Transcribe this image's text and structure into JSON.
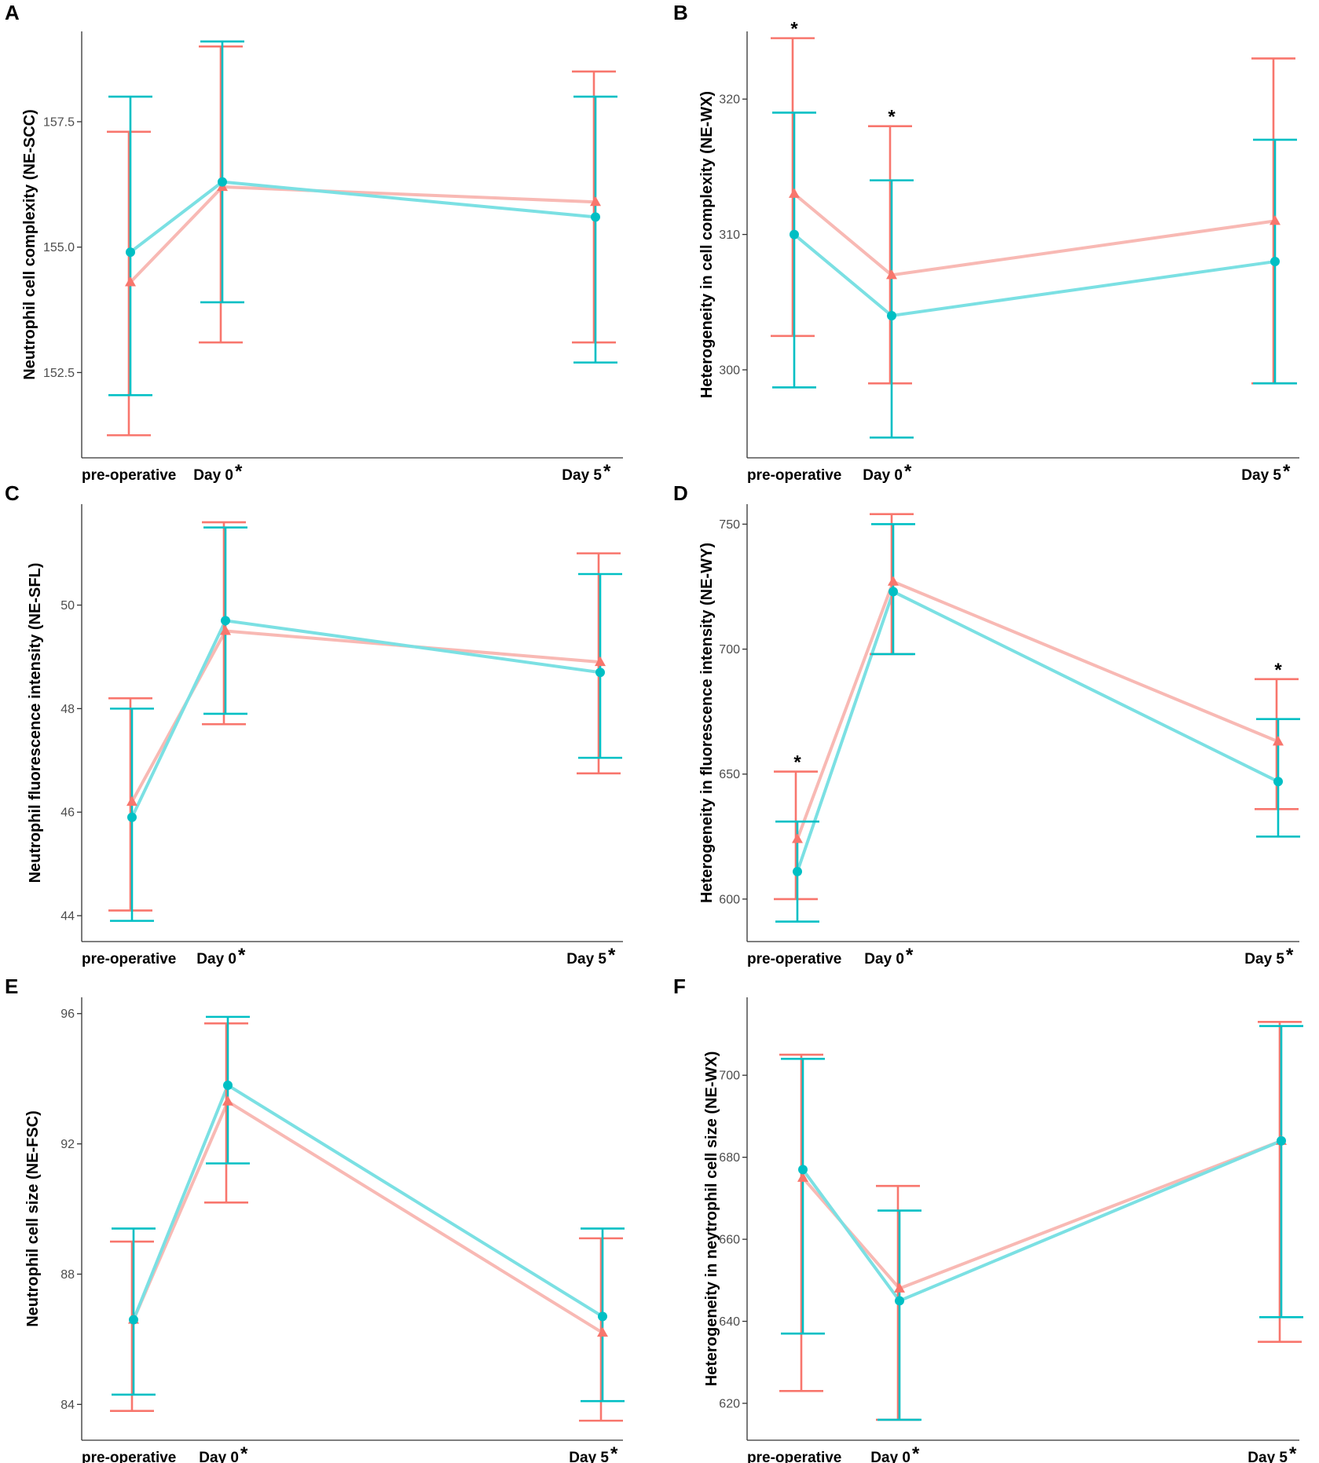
{
  "colors": {
    "series1": "#F8766D",
    "series2": "#00BFC4",
    "series1_line": "#F8B9B4",
    "series2_line": "#7BE0E3"
  },
  "chart_data": [
    {
      "panel": "A",
      "type": "line",
      "ylabel": "Neutrophil cell complexity (NE-SCC)",
      "categories": [
        "pre-operative",
        "Day 0",
        "Day 5"
      ],
      "category_stars": [
        false,
        true,
        true
      ],
      "x": [
        0,
        1,
        5
      ],
      "yticks": [
        "152.5",
        "155.0",
        "157.5"
      ],
      "yticks_num": [
        152.5,
        155.0,
        157.5
      ],
      "ylim": [
        150.8,
        159.3
      ],
      "series": [
        {
          "name": "series1",
          "marker": "triangle",
          "values": [
            154.3,
            156.2,
            155.9
          ],
          "lower": [
            151.25,
            153.1,
            153.1
          ],
          "upper": [
            157.3,
            159.0,
            158.5
          ],
          "stars": [
            false,
            false,
            false
          ]
        },
        {
          "name": "series2",
          "marker": "circle",
          "values": [
            154.9,
            156.3,
            155.6
          ],
          "lower": [
            152.05,
            153.9,
            152.7
          ],
          "upper": [
            158.0,
            159.1,
            158.0
          ],
          "stars": [
            false,
            false,
            false
          ]
        }
      ]
    },
    {
      "panel": "B",
      "type": "line",
      "ylabel": "Heterogeneity in cell complexity (NE-WX)",
      "categories": [
        "pre-operative",
        "Day 0",
        "Day 5"
      ],
      "category_stars": [
        false,
        true,
        true
      ],
      "x": [
        0,
        1,
        5
      ],
      "yticks": [
        "300",
        "310",
        "320"
      ],
      "yticks_num": [
        300,
        310,
        320
      ],
      "ylim": [
        293.5,
        325
      ],
      "series": [
        {
          "name": "series1",
          "marker": "triangle",
          "values": [
            313,
            307,
            311
          ],
          "lower": [
            302.5,
            299,
            299
          ],
          "upper": [
            324.5,
            318,
            323
          ],
          "stars": [
            true,
            true,
            false
          ]
        },
        {
          "name": "series2",
          "marker": "circle",
          "values": [
            310,
            304,
            308
          ],
          "lower": [
            298.7,
            295,
            299
          ],
          "upper": [
            319,
            314,
            317
          ],
          "stars": [
            false,
            false,
            false
          ]
        }
      ]
    },
    {
      "panel": "C",
      "type": "line",
      "ylabel": "Neutrophil fluorescence intensity (NE-SFL)",
      "categories": [
        "pre-operative",
        "Day 0",
        "Day 5"
      ],
      "category_stars": [
        false,
        true,
        true
      ],
      "x": [
        0,
        1,
        5
      ],
      "yticks": [
        "44",
        "46",
        "48",
        "50"
      ],
      "yticks_num": [
        44,
        46,
        48,
        50
      ],
      "ylim": [
        43.5,
        51.95
      ],
      "series": [
        {
          "name": "series1",
          "marker": "triangle",
          "values": [
            46.2,
            49.5,
            48.9
          ],
          "lower": [
            44.1,
            47.7,
            46.75
          ],
          "upper": [
            48.2,
            51.6,
            51.0
          ],
          "stars": [
            false,
            false,
            false
          ]
        },
        {
          "name": "series2",
          "marker": "circle",
          "values": [
            45.9,
            49.7,
            48.7
          ],
          "lower": [
            43.9,
            47.9,
            47.05
          ],
          "upper": [
            48.0,
            51.5,
            50.6
          ],
          "stars": [
            false,
            false,
            false
          ]
        }
      ]
    },
    {
      "panel": "D",
      "type": "line",
      "ylabel": "Heterogeneity in fluorescence intensity (NE-WY)",
      "categories": [
        "pre-operative",
        "Day 0",
        "Day 5"
      ],
      "category_stars": [
        false,
        true,
        true
      ],
      "x": [
        0,
        1,
        5
      ],
      "yticks": [
        "600",
        "650",
        "700",
        "750"
      ],
      "yticks_num": [
        600,
        650,
        700,
        750
      ],
      "ylim": [
        583,
        758
      ],
      "series": [
        {
          "name": "series1",
          "marker": "triangle",
          "values": [
            624,
            727,
            663
          ],
          "lower": [
            600,
            698,
            636
          ],
          "upper": [
            651,
            754,
            688
          ],
          "stars": [
            true,
            false,
            true
          ]
        },
        {
          "name": "series2",
          "marker": "circle",
          "values": [
            611,
            723,
            647
          ],
          "lower": [
            591,
            698,
            625
          ],
          "upper": [
            631,
            750,
            672
          ],
          "stars": [
            false,
            false,
            false
          ]
        }
      ]
    },
    {
      "panel": "E",
      "type": "line",
      "ylabel": "Neutrophil cell size (NE-FSC)",
      "categories": [
        "pre-operative",
        "Day 0",
        "Day 5"
      ],
      "category_stars": [
        false,
        true,
        true
      ],
      "x": [
        0,
        1,
        5
      ],
      "yticks": [
        "84",
        "88",
        "92",
        "96"
      ],
      "yticks_num": [
        84,
        88,
        92,
        96
      ],
      "ylim": [
        82.9,
        96.5
      ],
      "series": [
        {
          "name": "series1",
          "marker": "triangle",
          "values": [
            86.6,
            93.3,
            86.2
          ],
          "lower": [
            83.8,
            90.2,
            83.5
          ],
          "upper": [
            89.0,
            95.7,
            89.1
          ],
          "stars": [
            false,
            false,
            false
          ]
        },
        {
          "name": "series2",
          "marker": "circle",
          "values": [
            86.6,
            93.8,
            86.7
          ],
          "lower": [
            84.3,
            91.4,
            84.1
          ],
          "upper": [
            89.4,
            95.9,
            89.4
          ],
          "stars": [
            false,
            false,
            false
          ]
        }
      ]
    },
    {
      "panel": "F",
      "type": "line",
      "ylabel": "Heterogeneity in neytrophil cell size (NE-WX)",
      "categories": [
        "pre-operative",
        "Day 0",
        "Day 5"
      ],
      "category_stars": [
        false,
        true,
        true
      ],
      "x": [
        0,
        1,
        5
      ],
      "yticks": [
        "620",
        "640",
        "660",
        "680",
        "700"
      ],
      "yticks_num": [
        620,
        640,
        660,
        680,
        700
      ],
      "ylim": [
        611,
        719
      ],
      "series": [
        {
          "name": "series1",
          "marker": "triangle",
          "values": [
            675,
            648,
            684
          ],
          "lower": [
            623,
            616,
            635
          ],
          "upper": [
            705,
            673,
            713
          ],
          "stars": [
            false,
            false,
            false
          ]
        },
        {
          "name": "series2",
          "marker": "circle",
          "values": [
            677,
            645,
            684
          ],
          "lower": [
            637,
            616,
            641
          ],
          "upper": [
            704,
            667,
            712
          ],
          "stars": [
            false,
            false,
            false
          ]
        }
      ]
    }
  ]
}
